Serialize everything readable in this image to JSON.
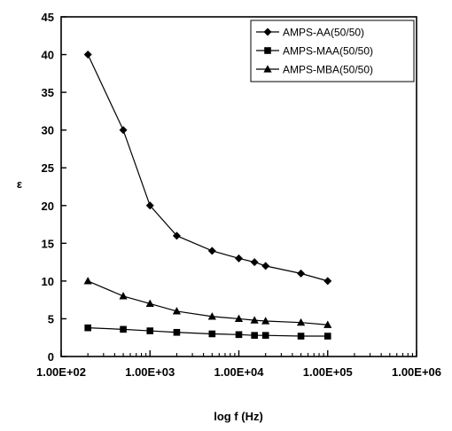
{
  "chart_data": {
    "type": "line",
    "xscale": "log",
    "xlim": [
      100,
      1000000
    ],
    "ylim": [
      0,
      45
    ],
    "xlabel": "log f (Hz)",
    "ylabel": "ε",
    "x_tick_labels": [
      "1.00E+02",
      "1.00E+03",
      "1.00E+04",
      "1.00E+05",
      "1.00E+06"
    ],
    "y_tick_labels": [
      "0",
      "5",
      "10",
      "15",
      "20",
      "25",
      "30",
      "35",
      "40",
      "45"
    ],
    "grid": false,
    "legend_position": "top-right",
    "color": "#000000",
    "series": [
      {
        "name": "AMPS-AA(50/50)",
        "marker": "diamond",
        "x": [
          200,
          500,
          1000,
          2000,
          5000,
          10000,
          15000,
          20000,
          50000,
          100000
        ],
        "y": [
          40,
          30,
          20,
          16,
          14,
          13,
          12.5,
          12,
          11,
          10
        ]
      },
      {
        "name": "AMPS-MAA(50/50)",
        "marker": "square",
        "x": [
          200,
          500,
          1000,
          2000,
          5000,
          10000,
          15000,
          20000,
          50000,
          100000
        ],
        "y": [
          3.8,
          3.6,
          3.4,
          3.2,
          3.0,
          2.9,
          2.8,
          2.8,
          2.7,
          2.7
        ]
      },
      {
        "name": "AMPS-MBA(50/50)",
        "marker": "triangle",
        "x": [
          200,
          500,
          1000,
          2000,
          5000,
          10000,
          15000,
          20000,
          50000,
          100000
        ],
        "y": [
          10,
          8,
          7,
          6,
          5.3,
          5,
          4.8,
          4.7,
          4.5,
          4.2
        ]
      }
    ]
  }
}
